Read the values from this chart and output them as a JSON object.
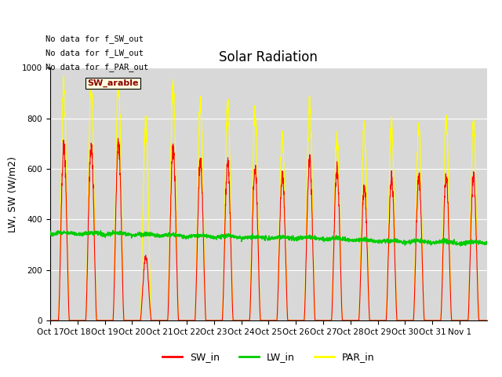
{
  "title": "Solar Radiation",
  "ylabel": "LW, SW (W/m2)",
  "xlabels": [
    "Oct 17",
    "Oct 18",
    "Oct 19",
    "Oct 20",
    "Oct 21",
    "Oct 22",
    "Oct 23",
    "Oct 24",
    "Oct 25",
    "Oct 26",
    "Oct 27",
    "Oct 28",
    "Oct 29",
    "Oct 30",
    "Oct 31",
    "Nov 1"
  ],
  "ylim": [
    0,
    1000
  ],
  "text_lines": [
    "No data for f_SW_out",
    "No data for f_LW_out",
    "No data for f_PAR_out"
  ],
  "legend_label": "SW_arable",
  "sw_color": "#ff0000",
  "lw_color": "#00cc00",
  "par_color": "#ffff00",
  "background_color": "#d8d8d8",
  "legend_entries": [
    "SW_in",
    "LW_in",
    "PAR_in"
  ],
  "sw_peak_vals": [
    690,
    690,
    700,
    250,
    670,
    635,
    630,
    610,
    580,
    630,
    600,
    530,
    565,
    570,
    570,
    575
  ],
  "par_peak_vals": [
    930,
    930,
    940,
    780,
    920,
    860,
    850,
    820,
    720,
    855,
    715,
    760,
    770,
    770,
    780,
    775
  ],
  "lw_base": 340,
  "num_days": 16
}
